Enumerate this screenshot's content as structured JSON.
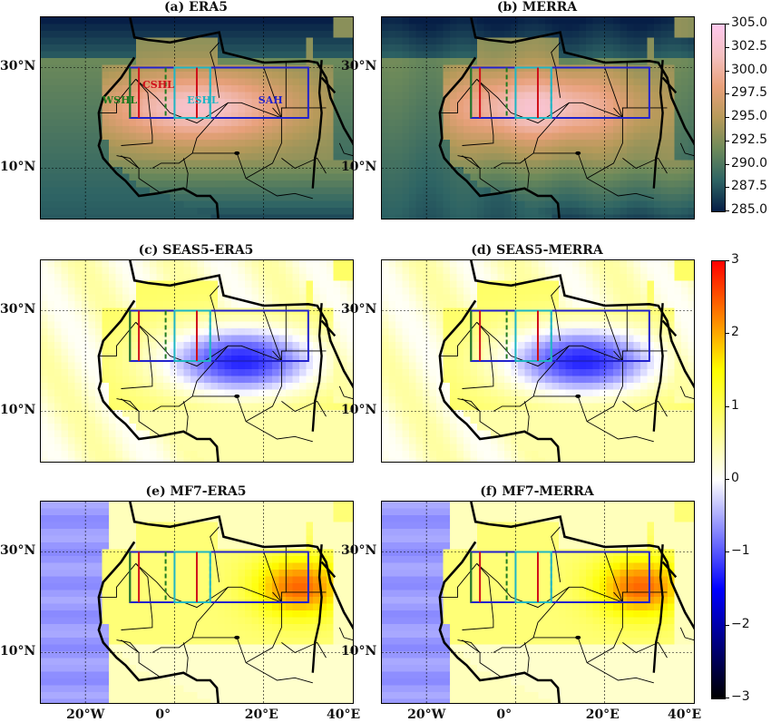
{
  "panels": [
    {
      "id": "a",
      "title": "(a) ERA5",
      "kind": "temperature",
      "source": "ERA5"
    },
    {
      "id": "b",
      "title": "(b) MERRA",
      "kind": "temperature",
      "source": "MERRA"
    },
    {
      "id": "c",
      "title": "(c) SEAS5-ERA5",
      "kind": "bias",
      "pattern": "seas5"
    },
    {
      "id": "d",
      "title": "(d) SEAS5-MERRA",
      "kind": "bias",
      "pattern": "seas5"
    },
    {
      "id": "e",
      "title": "(e) MF7-ERA5",
      "kind": "bias",
      "pattern": "mf7"
    },
    {
      "id": "f",
      "title": "(f) MF7-MERRA",
      "kind": "bias",
      "pattern": "mf7"
    }
  ],
  "lat_labels": [
    "30°N",
    "10°N"
  ],
  "lon_labels": [
    "20°W",
    "0°",
    "20°E",
    "40°E"
  ],
  "box_labels": [
    {
      "text": "WSHL",
      "color": "#1f7a1f"
    },
    {
      "text": "CSHL",
      "color": "#d0101a"
    },
    {
      "text": "ESHL",
      "color": "#1fb5c4"
    },
    {
      "text": "SAH",
      "color": "#2222cc"
    }
  ],
  "colors": {
    "wshl": "#1f7a1f",
    "cshl": "#d0101a",
    "eshl": "#1fb5c4",
    "sah": "#2222cc"
  },
  "chart_data": [
    {
      "type": "heatmap",
      "name": "temperature colorbar",
      "ticks": [
        "305.0",
        "302.5",
        "300.0",
        "297.5",
        "295.0",
        "292.5",
        "290.0",
        "287.5",
        "285.0"
      ],
      "range": [
        285.0,
        305.0
      ],
      "colors": [
        "#061e46",
        "#2e6464",
        "#6d8a5a",
        "#b69a5a",
        "#e8a07a",
        "#f4c0c0",
        "#ffc8ee"
      ]
    },
    {
      "type": "heatmap",
      "name": "bias colorbar",
      "ticks": [
        "3",
        "2",
        "1",
        "0",
        "−1",
        "−2",
        "−3"
      ],
      "range": [
        -3,
        3
      ],
      "colors": [
        "#000000",
        "#0000ff",
        "#ffffff",
        "#ffff00",
        "#ff0000"
      ]
    }
  ]
}
